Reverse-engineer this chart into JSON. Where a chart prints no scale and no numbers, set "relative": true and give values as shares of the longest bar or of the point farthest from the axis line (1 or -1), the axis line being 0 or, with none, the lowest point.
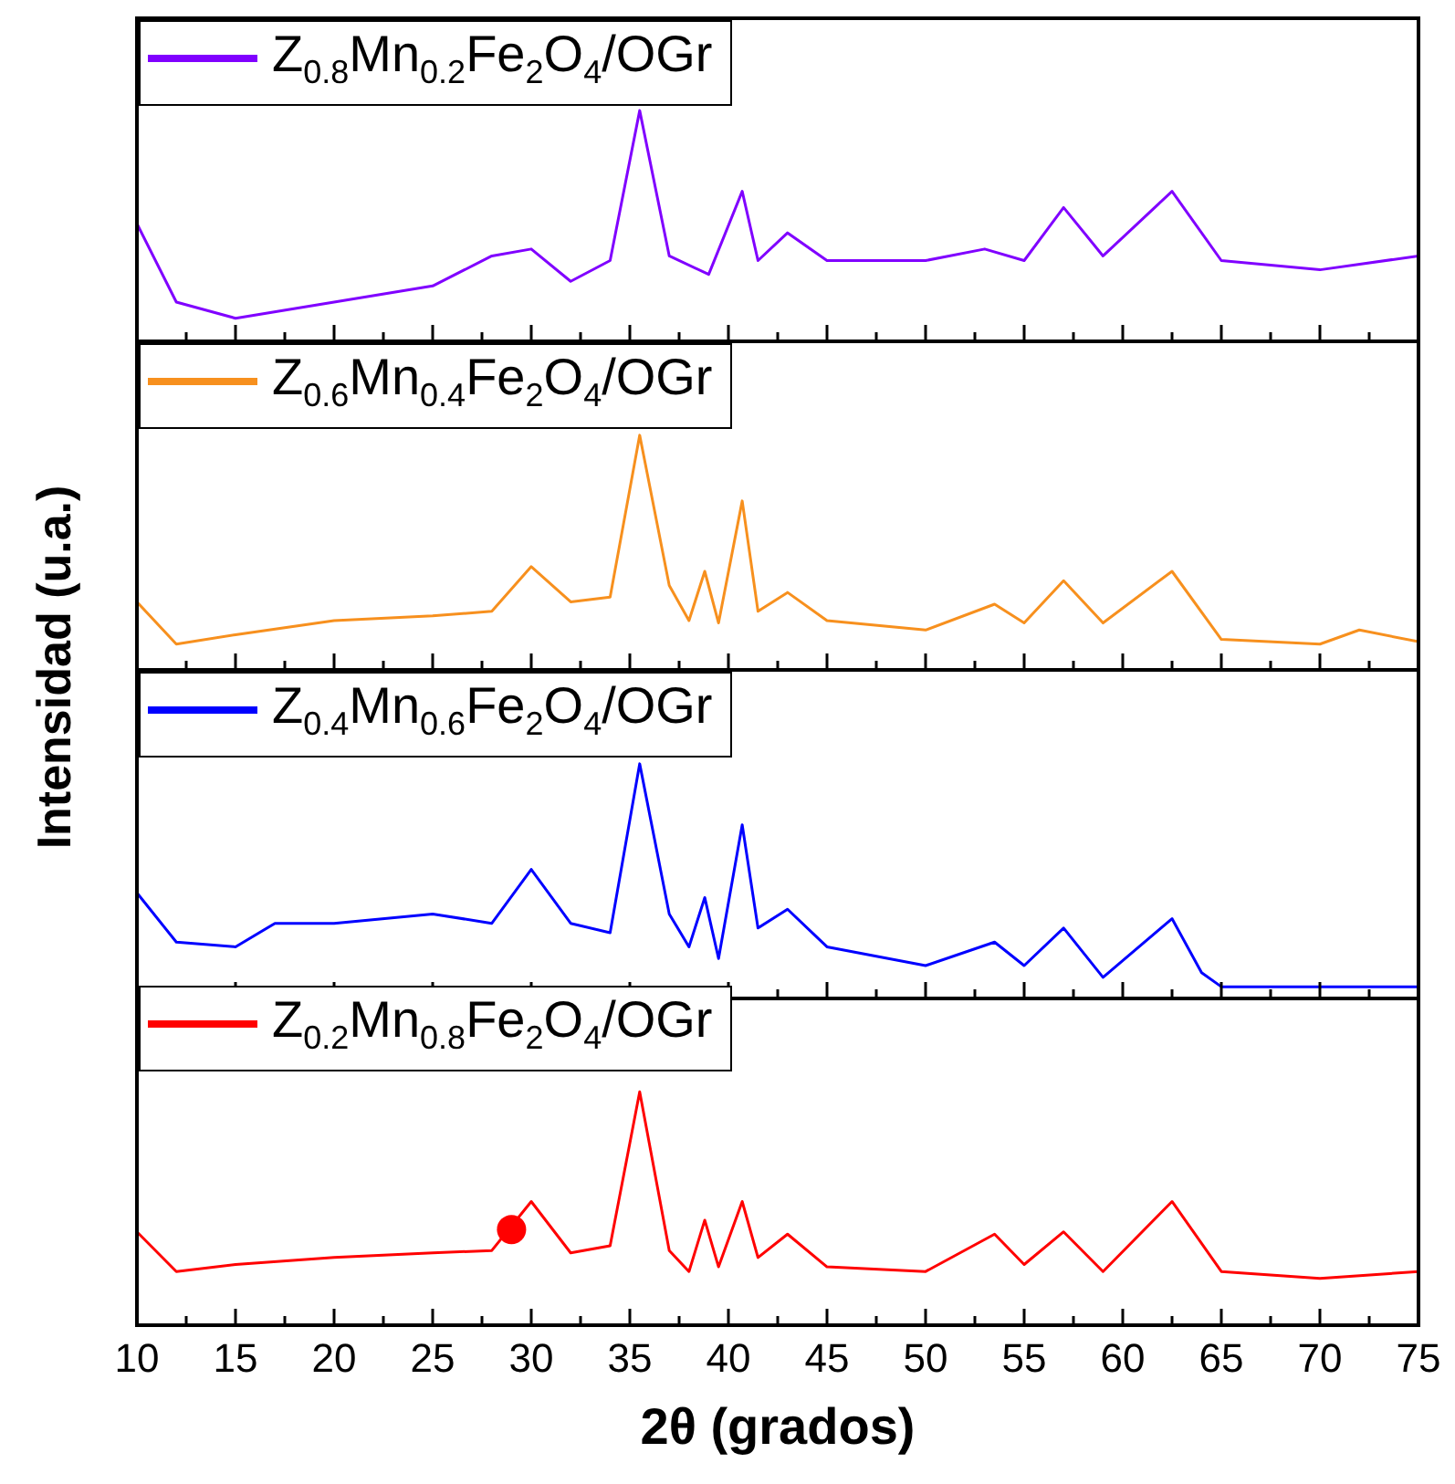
{
  "chart_data": [
    {
      "type": "line",
      "relative": true,
      "ylabel": "Intensidad (u.a.)",
      "tick_labels": false,
      "xlim": [
        10,
        75
      ],
      "xticks": [
        10,
        {
          "value": 12.5,
          "label": null
        },
        15,
        {
          "value": 17.5,
          "label": null
        },
        20,
        {
          "value": 22.5,
          "label": null
        },
        25,
        {
          "value": 27.5,
          "label": null
        },
        30,
        {
          "value": 32.5,
          "label": null
        },
        35,
        {
          "value": 37.5,
          "label": null
        },
        40,
        {
          "value": 42.5,
          "label": null
        },
        45,
        {
          "value": 47.5,
          "label": null
        },
        50,
        {
          "value": 52.5,
          "label": null
        },
        55,
        {
          "value": 57.5,
          "label": null
        },
        60,
        {
          "value": 62.5,
          "label": null
        },
        65,
        {
          "value": 67.5,
          "label": null
        },
        70,
        {
          "value": 72.5,
          "label": null
        },
        75
      ],
      "x": [
        10,
        12,
        15,
        20,
        25,
        28,
        30,
        32,
        34,
        35.5,
        37,
        39,
        40.7,
        41.5,
        43,
        45,
        50,
        53,
        55,
        57,
        59,
        62.5,
        65,
        70,
        75
      ],
      "series": [
        {
          "name": "Z$_{0.8}$Mn$_{0.2}$Fe$_{2}$O$_{4}$/OGr",
          "color": "#8000ff",
          "values": [
            0.51,
            0.17,
            0.1,
            0.17,
            0.24,
            0.37,
            0.4,
            0.26,
            0.35,
            1,
            0.37,
            0.29,
            0.65,
            0.35,
            0.47,
            0.35,
            0.35,
            0.4,
            0.35,
            0.58,
            0.37,
            0.65,
            0.35,
            0.31,
            0.37
          ]
        }
      ]
    },
    {
      "type": "line",
      "relative": true,
      "tick_labels": false,
      "xlim": [
        10,
        75
      ],
      "xticks": [
        10,
        {
          "value": 12.5,
          "label": null
        },
        15,
        {
          "value": 17.5,
          "label": null
        },
        20,
        {
          "value": 22.5,
          "label": null
        },
        25,
        {
          "value": 27.5,
          "label": null
        },
        30,
        {
          "value": 32.5,
          "label": null
        },
        35,
        {
          "value": 37.5,
          "label": null
        },
        40,
        {
          "value": 42.5,
          "label": null
        },
        45,
        {
          "value": 47.5,
          "label": null
        },
        50,
        {
          "value": 52.5,
          "label": null
        },
        55,
        {
          "value": 57.5,
          "label": null
        },
        60,
        {
          "value": 62.5,
          "label": null
        },
        65,
        {
          "value": 67.5,
          "label": null
        },
        70,
        {
          "value": 72.5,
          "label": null
        },
        75
      ],
      "x": [
        10,
        12,
        15,
        20,
        25,
        28,
        30,
        32,
        34,
        35.5,
        37,
        38,
        38.8,
        39.5,
        40.7,
        41.5,
        43,
        45,
        50,
        53.5,
        55,
        57,
        59,
        62.5,
        65,
        70,
        72,
        75
      ],
      "series": [
        {
          "name": "Z$_{0.6}$Mn$_{0.4}$Fe$_{2}$O$_{4}$/OGr",
          "color": "#f7901e",
          "values": [
            0.29,
            0.11,
            0.15,
            0.21,
            0.23,
            0.25,
            0.44,
            0.29,
            0.31,
            1,
            0.36,
            0.21,
            0.42,
            0.2,
            0.72,
            0.25,
            0.33,
            0.21,
            0.17,
            0.28,
            0.2,
            0.38,
            0.2,
            0.42,
            0.13,
            0.11,
            0.17,
            0.12
          ]
        }
      ]
    },
    {
      "type": "line",
      "relative": true,
      "tick_labels": false,
      "xlim": [
        10,
        75
      ],
      "xticks": [
        10,
        {
          "value": 12.5,
          "label": null
        },
        15,
        {
          "value": 17.5,
          "label": null
        },
        20,
        {
          "value": 22.5,
          "label": null
        },
        25,
        {
          "value": 27.5,
          "label": null
        },
        30,
        {
          "value": 32.5,
          "label": null
        },
        35,
        {
          "value": 37.5,
          "label": null
        },
        40,
        {
          "value": 42.5,
          "label": null
        },
        45,
        {
          "value": 47.5,
          "label": null
        },
        50,
        {
          "value": 52.5,
          "label": null
        },
        55,
        {
          "value": 57.5,
          "label": null
        },
        60,
        {
          "value": 62.5,
          "label": null
        },
        65,
        {
          "value": 67.5,
          "label": null
        },
        70,
        {
          "value": 72.5,
          "label": null
        },
        75
      ],
      "x": [
        10,
        12,
        15,
        17,
        20,
        25,
        28,
        30,
        32,
        34,
        35.5,
        37,
        38,
        38.8,
        39.5,
        40.7,
        41.5,
        43,
        45,
        50,
        53.5,
        55,
        57,
        59,
        62.5,
        64,
        65,
        70,
        75
      ],
      "series": [
        {
          "name": "Z$_{0.4}$Mn$_{0.6}$Fe$_{2}$O$_{4}$/OGr",
          "color": "#0000ff",
          "values": [
            0.45,
            0.24,
            0.22,
            0.32,
            0.32,
            0.36,
            0.32,
            0.55,
            0.32,
            0.28,
            1,
            0.36,
            0.22,
            0.43,
            0.17,
            0.74,
            0.3,
            0.38,
            0.22,
            0.14,
            0.24,
            0.14,
            0.3,
            0.09,
            0.34,
            0.11,
            0.05,
            0.05,
            0.05
          ]
        }
      ]
    },
    {
      "type": "line",
      "relative": true,
      "xlabel": "2θ (grados)",
      "tick_labels": "x",
      "xlim": [
        10,
        75
      ],
      "xticks": [
        10,
        {
          "value": 12.5,
          "label": null
        },
        15,
        {
          "value": 17.5,
          "label": null
        },
        20,
        {
          "value": 22.5,
          "label": null
        },
        25,
        {
          "value": 27.5,
          "label": null
        },
        30,
        {
          "value": 32.5,
          "label": null
        },
        35,
        {
          "value": 37.5,
          "label": null
        },
        40,
        {
          "value": 42.5,
          "label": null
        },
        45,
        {
          "value": 47.5,
          "label": null
        },
        50,
        {
          "value": 52.5,
          "label": null
        },
        55,
        {
          "value": 57.5,
          "label": null
        },
        60,
        {
          "value": 62.5,
          "label": null
        },
        65,
        {
          "value": 67.5,
          "label": null
        },
        70,
        {
          "value": 72.5,
          "label": null
        },
        75
      ],
      "x": [
        10,
        12,
        15,
        20,
        25,
        28,
        30,
        32,
        34,
        35.5,
        37,
        38,
        38.8,
        39.5,
        40.7,
        41.5,
        43,
        45,
        50,
        53.5,
        55,
        57,
        59,
        62.5,
        65,
        70,
        75
      ],
      "series": [
        {
          "name": "Z$_{0.2}$Mn$_{0.8}$Fe$_{2}$O$_{4}$/OGr",
          "color": "#ff0000",
          "values": [
            0.4,
            0.23,
            0.26,
            0.29,
            0.31,
            0.32,
            0.53,
            0.31,
            0.34,
            1,
            0.32,
            0.23,
            0.45,
            0.25,
            0.53,
            0.29,
            0.39,
            0.25,
            0.23,
            0.39,
            0.26,
            0.4,
            0.23,
            0.53,
            0.23,
            0.2,
            0.23
          ]
        },
        {
          "type": "scatter",
          "marker": "circle",
          "color": "#ff0000",
          "x": [
            29
          ],
          "values": [
            0.41
          ]
        }
      ]
    }
  ]
}
